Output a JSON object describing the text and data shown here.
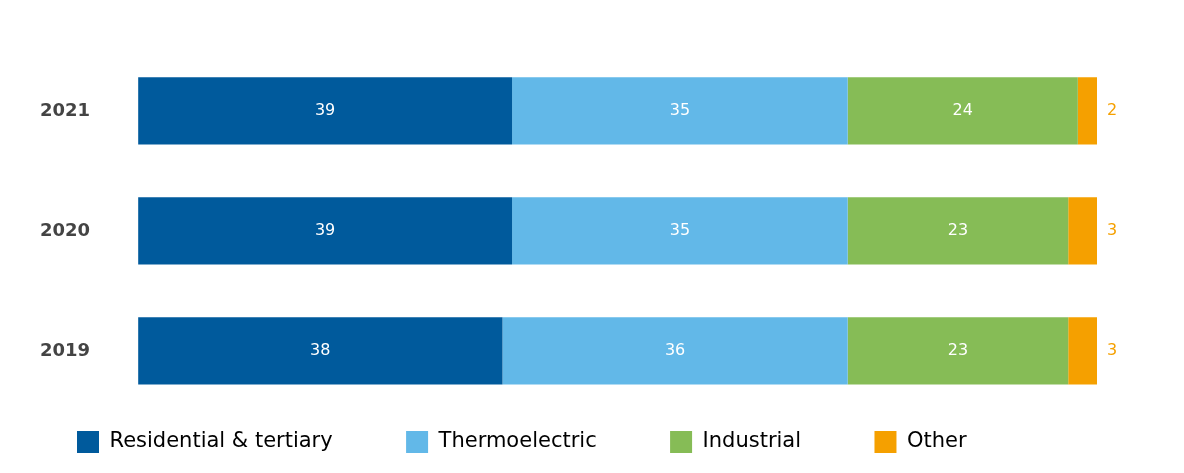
{
  "chart_data": {
    "type": "bar",
    "orientation": "horizontal",
    "stacked": true,
    "categories": [
      "2021",
      "2020",
      "2019"
    ],
    "series": [
      {
        "name": "Residential & tertiary",
        "color": "#005a9c",
        "values": [
          39,
          39,
          38
        ]
      },
      {
        "name": "Thermoelectric",
        "color": "#62b8e8",
        "values": [
          35,
          35,
          36
        ]
      },
      {
        "name": "Industrial",
        "color": "#86bc56",
        "values": [
          24,
          23,
          23
        ]
      },
      {
        "name": "Other",
        "color": "#f5a000",
        "values": [
          2,
          3,
          3
        ]
      }
    ],
    "xlim": [
      0,
      100
    ],
    "tick_labels": "y",
    "legend": "bottom",
    "data_labels": true
  }
}
